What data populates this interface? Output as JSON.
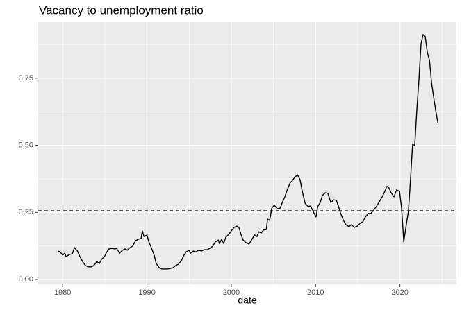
{
  "chart_data": {
    "type": "line",
    "title": "Vacancy to unemployment ratio",
    "x_label": "date",
    "x": [
      1979.5,
      1979.75,
      1980,
      1980.25,
      1980.4,
      1980.8,
      1981.15,
      1981.4,
      1981.75,
      1982.05,
      1982.4,
      1982.7,
      1983.05,
      1983.4,
      1983.7,
      1984.05,
      1984.35,
      1984.6,
      1984.95,
      1985.2,
      1985.5,
      1985.85,
      1986.2,
      1986.4,
      1986.75,
      1987.1,
      1987.4,
      1987.65,
      1988.0,
      1988.3,
      1988.65,
      1989.0,
      1989.3,
      1989.45,
      1989.65,
      1990.0,
      1990.2,
      1990.55,
      1990.85,
      1991.1,
      1991.45,
      1991.8,
      1992.1,
      1992.45,
      1992.75,
      1993.1,
      1993.4,
      1993.75,
      1994.1,
      1994.4,
      1994.65,
      1995.0,
      1995.15,
      1995.5,
      1995.8,
      1996.15,
      1996.45,
      1996.8,
      1997.15,
      1997.45,
      1997.8,
      1998.1,
      1998.45,
      1998.6,
      1998.85,
      1999.1,
      1999.35,
      1999.7,
      2000.0,
      2000.35,
      2000.65,
      2000.9,
      2001.15,
      2001.4,
      2001.75,
      2002.1,
      2002.4,
      2002.75,
      2003.05,
      2003.25,
      2003.55,
      2003.8,
      2004.15,
      2004.3,
      2004.55,
      2004.8,
      2005.1,
      2005.45,
      2005.8,
      2006.05,
      2006.35,
      2006.6,
      2006.95,
      2007.2,
      2007.5,
      2007.85,
      2008.15,
      2008.4,
      2008.75,
      2009.1,
      2009.4,
      2009.75,
      2010.05,
      2010.25,
      2010.55,
      2010.8,
      2011.15,
      2011.45,
      2011.8,
      2012.15,
      2012.45,
      2012.7,
      2012.95,
      2013.3,
      2013.6,
      2013.95,
      2014.25,
      2014.6,
      2014.95,
      2015.25,
      2015.6,
      2015.9,
      2016.25,
      2016.55,
      2016.9,
      2017.25,
      2017.55,
      2017.9,
      2018.2,
      2018.45,
      2018.7,
      2018.95,
      2019.3,
      2019.6,
      2019.95,
      2020.2,
      2020.45,
      2020.75,
      2021.0,
      2021.25,
      2021.5,
      2021.75,
      2022.0,
      2022.25,
      2022.5,
      2022.75,
      2023.0,
      2023.25,
      2023.5,
      2023.75,
      2024.0,
      2024.25,
      2024.5
    ],
    "series": [
      {
        "color": "#000000",
        "values": [
          0.106,
          0.101,
          0.091,
          0.098,
          0.085,
          0.093,
          0.096,
          0.119,
          0.106,
          0.085,
          0.065,
          0.052,
          0.047,
          0.047,
          0.052,
          0.067,
          0.059,
          0.075,
          0.085,
          0.101,
          0.114,
          0.116,
          0.114,
          0.116,
          0.098,
          0.109,
          0.114,
          0.109,
          0.119,
          0.124,
          0.145,
          0.15,
          0.153,
          0.181,
          0.16,
          0.166,
          0.142,
          0.116,
          0.091,
          0.059,
          0.044,
          0.039,
          0.039,
          0.039,
          0.041,
          0.044,
          0.052,
          0.057,
          0.072,
          0.091,
          0.103,
          0.109,
          0.098,
          0.106,
          0.103,
          0.109,
          0.106,
          0.111,
          0.111,
          0.116,
          0.124,
          0.14,
          0.147,
          0.134,
          0.15,
          0.134,
          0.158,
          0.168,
          0.181,
          0.194,
          0.199,
          0.194,
          0.168,
          0.147,
          0.137,
          0.132,
          0.147,
          0.166,
          0.16,
          0.178,
          0.173,
          0.184,
          0.186,
          0.225,
          0.22,
          0.266,
          0.277,
          0.264,
          0.266,
          0.287,
          0.308,
          0.331,
          0.359,
          0.367,
          0.38,
          0.39,
          0.372,
          0.331,
          0.284,
          0.272,
          0.274,
          0.251,
          0.233,
          0.272,
          0.287,
          0.313,
          0.323,
          0.321,
          0.287,
          0.297,
          0.295,
          0.274,
          0.248,
          0.22,
          0.204,
          0.197,
          0.204,
          0.194,
          0.199,
          0.209,
          0.215,
          0.233,
          0.246,
          0.246,
          0.259,
          0.274,
          0.29,
          0.308,
          0.328,
          0.347,
          0.341,
          0.323,
          0.308,
          0.334,
          0.328,
          0.264,
          0.14,
          0.204,
          0.253,
          0.372,
          0.504,
          0.499,
          0.631,
          0.745,
          0.879,
          0.913,
          0.905,
          0.846,
          0.817,
          0.732,
          0.678,
          0.628,
          0.584
        ]
      }
    ],
    "hline": {
      "value": 0.256,
      "color": "#000000",
      "dashed": true
    },
    "xlim": [
      1977.1,
      2026.7
    ],
    "xticks": [
      1980,
      1990,
      2000,
      2010,
      2020
    ],
    "ylim": [
      -0.018,
      0.959
    ],
    "yticks": [
      {
        "value": 0,
        "label": "0.00"
      },
      {
        "value": 0.25,
        "label": "0.25"
      },
      {
        "value": 0.5,
        "label": "0.50"
      },
      {
        "value": 0.75,
        "label": "0.75"
      }
    ],
    "grid": true,
    "panel_color": "#ebebeb"
  }
}
